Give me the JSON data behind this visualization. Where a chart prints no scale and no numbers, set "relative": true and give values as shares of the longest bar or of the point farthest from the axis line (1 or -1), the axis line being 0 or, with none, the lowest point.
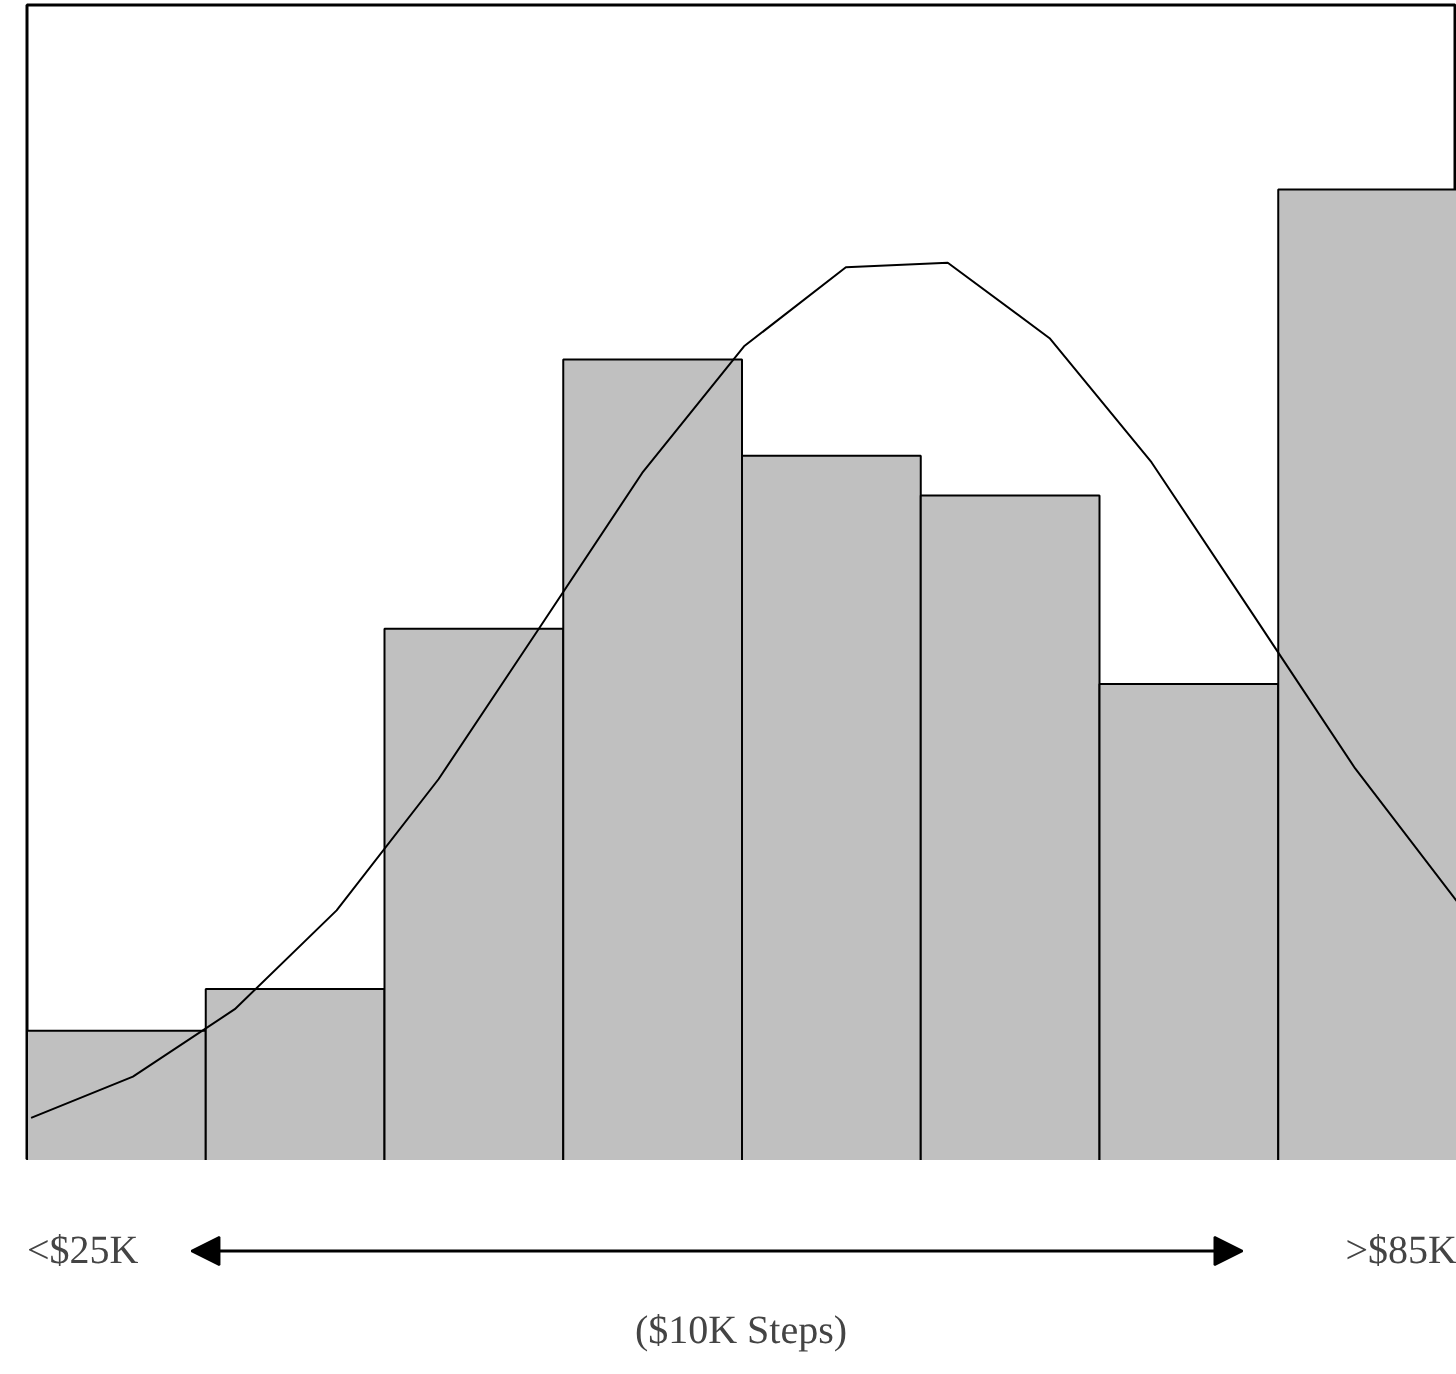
{
  "chart_data": [
    {
      "type": "bar",
      "relative": true,
      "categories": [
        null,
        null,
        null,
        null,
        null,
        null,
        null,
        null
      ],
      "series": [
        {
          "color": "#c0c0c0",
          "values": [
            0.134,
            0.177,
            0.548,
            0.825,
            0.726,
            0.685,
            0.491,
            1
          ]
        }
      ],
      "annotations": [
        "<$25K",
        ">$85K",
        "($10K Steps)"
      ]
    },
    {
      "type": "line",
      "relative": true,
      "categories": [
        null,
        null,
        null,
        null,
        null,
        null,
        null,
        null,
        null,
        null,
        null,
        null,
        null,
        null,
        null
      ],
      "series": [
        {
          "color": "#000000",
          "values": [
            0.048,
            0.094,
            0.169,
            0.279,
            0.425,
            0.595,
            0.766,
            0.907,
            0.995,
            1,
            0.916,
            0.778,
            0.608,
            0.437,
            0.289
          ]
        }
      ]
    }
  ]
}
